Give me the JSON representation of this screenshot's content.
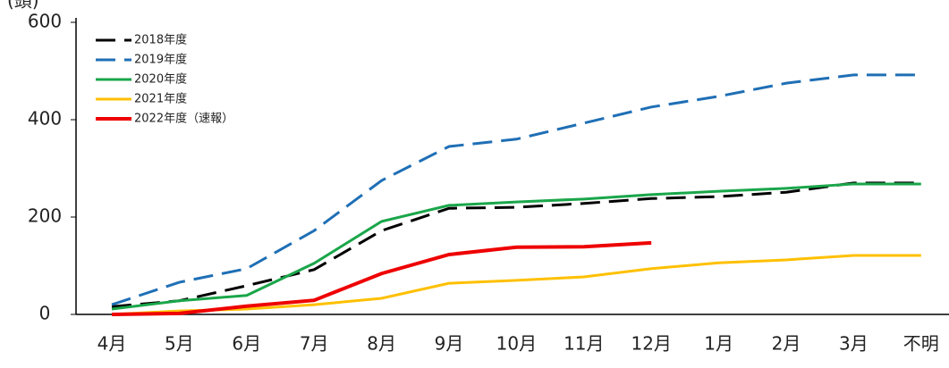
{
  "chart_data": {
    "type": "line",
    "y_label": "(頭)",
    "categories": [
      "4月",
      "5月",
      "6月",
      "7月",
      "8月",
      "9月",
      "10月",
      "11月",
      "12月",
      "1月",
      "2月",
      "3月",
      "不明"
    ],
    "ylim": [
      0,
      600
    ],
    "yticks": [
      0,
      200,
      400,
      600
    ],
    "series": [
      {
        "name": "2018年度",
        "color": "#000000",
        "dash": "dashed",
        "values": [
          16,
          28,
          59,
          92,
          172,
          218,
          220,
          228,
          238,
          242,
          251,
          270,
          270
        ]
      },
      {
        "name": "2019年度",
        "color": "#1f6fb5",
        "dash": "dashed",
        "values": [
          20,
          66,
          94,
          172,
          275,
          345,
          360,
          393,
          426,
          448,
          475,
          492,
          492
        ]
      },
      {
        "name": "2020年度",
        "color": "#1aa64a",
        "dash": "solid",
        "values": [
          11,
          28,
          39,
          105,
          191,
          224,
          231,
          237,
          246,
          253,
          259,
          268,
          268
        ]
      },
      {
        "name": "2021年度",
        "color": "#ffc000",
        "dash": "solid",
        "values": [
          0,
          7,
          11,
          20,
          33,
          64,
          70,
          77,
          94,
          106,
          112,
          121,
          121
        ]
      },
      {
        "name": "2022年度（速報）",
        "color": "#ee0000",
        "dash": "solid",
        "values": [
          0,
          2,
          17,
          29,
          84,
          123,
          138,
          139,
          147,
          null,
          null,
          null,
          null
        ]
      }
    ]
  }
}
